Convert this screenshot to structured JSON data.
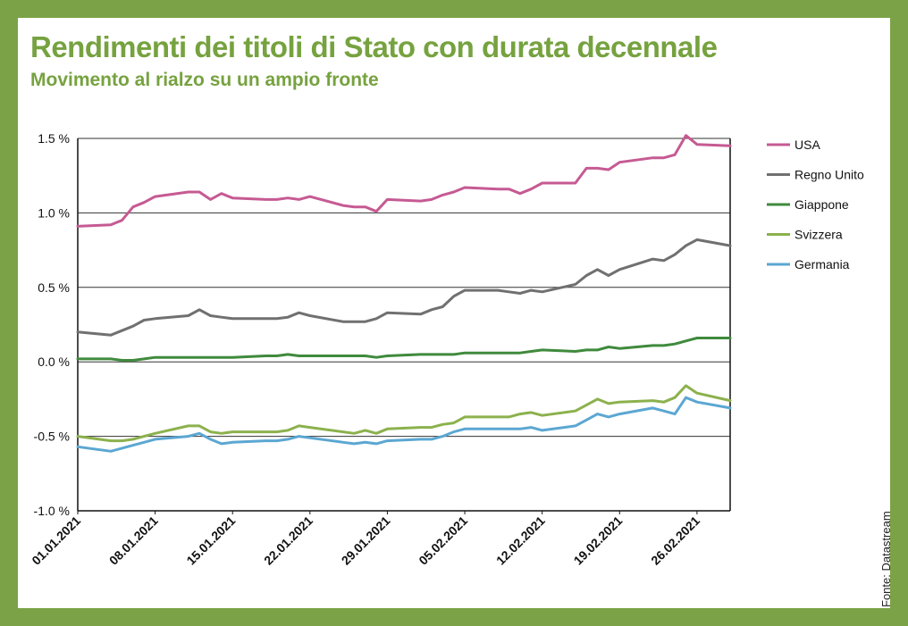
{
  "title": "Rendimenti dei titoli di Stato con durata decennale",
  "subtitle": "Movimento al rialzo su un ampio fronte",
  "source": "Fonte: Datastream",
  "colors": {
    "background": "#7ba247",
    "title": "#76a23f",
    "grid": "#333333"
  },
  "chart_data": {
    "type": "line",
    "title": "Rendimenti dei titoli di Stato con durata decennale",
    "subtitle": "Movimento al rialzo su un ampio fronte",
    "xlabel": "",
    "ylabel": "",
    "ylim": [
      -1.0,
      1.5
    ],
    "y_ticks": [
      1.5,
      1.0,
      0.5,
      0.0,
      -0.5,
      -1.0
    ],
    "y_tick_labels": [
      "1.5 %",
      "1.0 %",
      "0.5 %",
      "0.0 %",
      "-0.5 %",
      "-1.0 %"
    ],
    "x_tick_labels": [
      "01.01.2021",
      "08.01.2021",
      "15.01.2021",
      "22.01.2021",
      "29.01.2021",
      "05.02.2021",
      "12.02.2021",
      "19.02.2021",
      "26.02.2021"
    ],
    "x_tick_dates": [
      "2021-01-01",
      "2021-01-08",
      "2021-01-15",
      "2021-01-22",
      "2021-01-29",
      "2021-02-05",
      "2021-02-12",
      "2021-02-19",
      "2021-02-26"
    ],
    "grid": true,
    "legend_position": "right",
    "x": [
      "2021-01-01",
      "2021-01-04",
      "2021-01-05",
      "2021-01-06",
      "2021-01-07",
      "2021-01-08",
      "2021-01-11",
      "2021-01-12",
      "2021-01-13",
      "2021-01-14",
      "2021-01-15",
      "2021-01-18",
      "2021-01-19",
      "2021-01-20",
      "2021-01-21",
      "2021-01-22",
      "2021-01-25",
      "2021-01-26",
      "2021-01-27",
      "2021-01-28",
      "2021-01-29",
      "2021-02-01",
      "2021-02-02",
      "2021-02-03",
      "2021-02-04",
      "2021-02-05",
      "2021-02-08",
      "2021-02-09",
      "2021-02-10",
      "2021-02-11",
      "2021-02-12",
      "2021-02-15",
      "2021-02-16",
      "2021-02-17",
      "2021-02-18",
      "2021-02-19",
      "2021-02-22",
      "2021-02-23",
      "2021-02-24",
      "2021-02-25",
      "2021-02-26",
      "2021-03-01"
    ],
    "series": [
      {
        "name": "USA",
        "color": "#c65a93",
        "values": [
          0.91,
          0.92,
          0.95,
          1.04,
          1.07,
          1.11,
          1.14,
          1.14,
          1.09,
          1.13,
          1.1,
          1.09,
          1.09,
          1.1,
          1.09,
          1.11,
          1.05,
          1.04,
          1.04,
          1.01,
          1.09,
          1.08,
          1.09,
          1.12,
          1.14,
          1.17,
          1.16,
          1.16,
          1.13,
          1.16,
          1.2,
          1.2,
          1.3,
          1.3,
          1.29,
          1.34,
          1.37,
          1.37,
          1.39,
          1.52,
          1.46,
          1.45
        ]
      },
      {
        "name": "Regno Unito",
        "color": "#707070",
        "values": [
          0.2,
          0.18,
          0.21,
          0.24,
          0.28,
          0.29,
          0.31,
          0.35,
          0.31,
          0.3,
          0.29,
          0.29,
          0.29,
          0.3,
          0.33,
          0.31,
          0.27,
          0.27,
          0.27,
          0.29,
          0.33,
          0.32,
          0.35,
          0.37,
          0.44,
          0.48,
          0.48,
          0.47,
          0.46,
          0.48,
          0.47,
          0.52,
          0.58,
          0.62,
          0.58,
          0.62,
          0.69,
          0.68,
          0.72,
          0.78,
          0.82,
          0.78
        ]
      },
      {
        "name": "Giappone",
        "color": "#3f8a3c",
        "values": [
          0.02,
          0.02,
          0.01,
          0.01,
          0.02,
          0.03,
          0.03,
          0.03,
          0.03,
          0.03,
          0.03,
          0.04,
          0.04,
          0.05,
          0.04,
          0.04,
          0.04,
          0.04,
          0.04,
          0.03,
          0.04,
          0.05,
          0.05,
          0.05,
          0.05,
          0.06,
          0.06,
          0.06,
          0.06,
          0.07,
          0.08,
          0.07,
          0.08,
          0.08,
          0.1,
          0.09,
          0.11,
          0.11,
          0.12,
          0.14,
          0.16,
          0.16
        ]
      },
      {
        "name": "Svizzera",
        "color": "#8cb14d",
        "values": [
          -0.5,
          -0.53,
          -0.53,
          -0.52,
          -0.5,
          -0.48,
          -0.43,
          -0.43,
          -0.47,
          -0.48,
          -0.47,
          -0.47,
          -0.47,
          -0.46,
          -0.43,
          -0.44,
          -0.47,
          -0.48,
          -0.46,
          -0.48,
          -0.45,
          -0.44,
          -0.44,
          -0.42,
          -0.41,
          -0.37,
          -0.37,
          -0.37,
          -0.35,
          -0.34,
          -0.36,
          -0.33,
          -0.29,
          -0.25,
          -0.28,
          -0.27,
          -0.26,
          -0.27,
          -0.24,
          -0.16,
          -0.21,
          -0.26
        ]
      },
      {
        "name": "Germania",
        "color": "#5ba7d2",
        "values": [
          -0.57,
          -0.6,
          -0.58,
          -0.56,
          -0.54,
          -0.52,
          -0.5,
          -0.48,
          -0.52,
          -0.55,
          -0.54,
          -0.53,
          -0.53,
          -0.52,
          -0.5,
          -0.51,
          -0.54,
          -0.55,
          -0.54,
          -0.55,
          -0.53,
          -0.52,
          -0.52,
          -0.5,
          -0.47,
          -0.45,
          -0.45,
          -0.45,
          -0.45,
          -0.44,
          -0.46,
          -0.43,
          -0.39,
          -0.35,
          -0.37,
          -0.35,
          -0.31,
          -0.33,
          -0.35,
          -0.24,
          -0.27,
          -0.31
        ]
      }
    ]
  }
}
